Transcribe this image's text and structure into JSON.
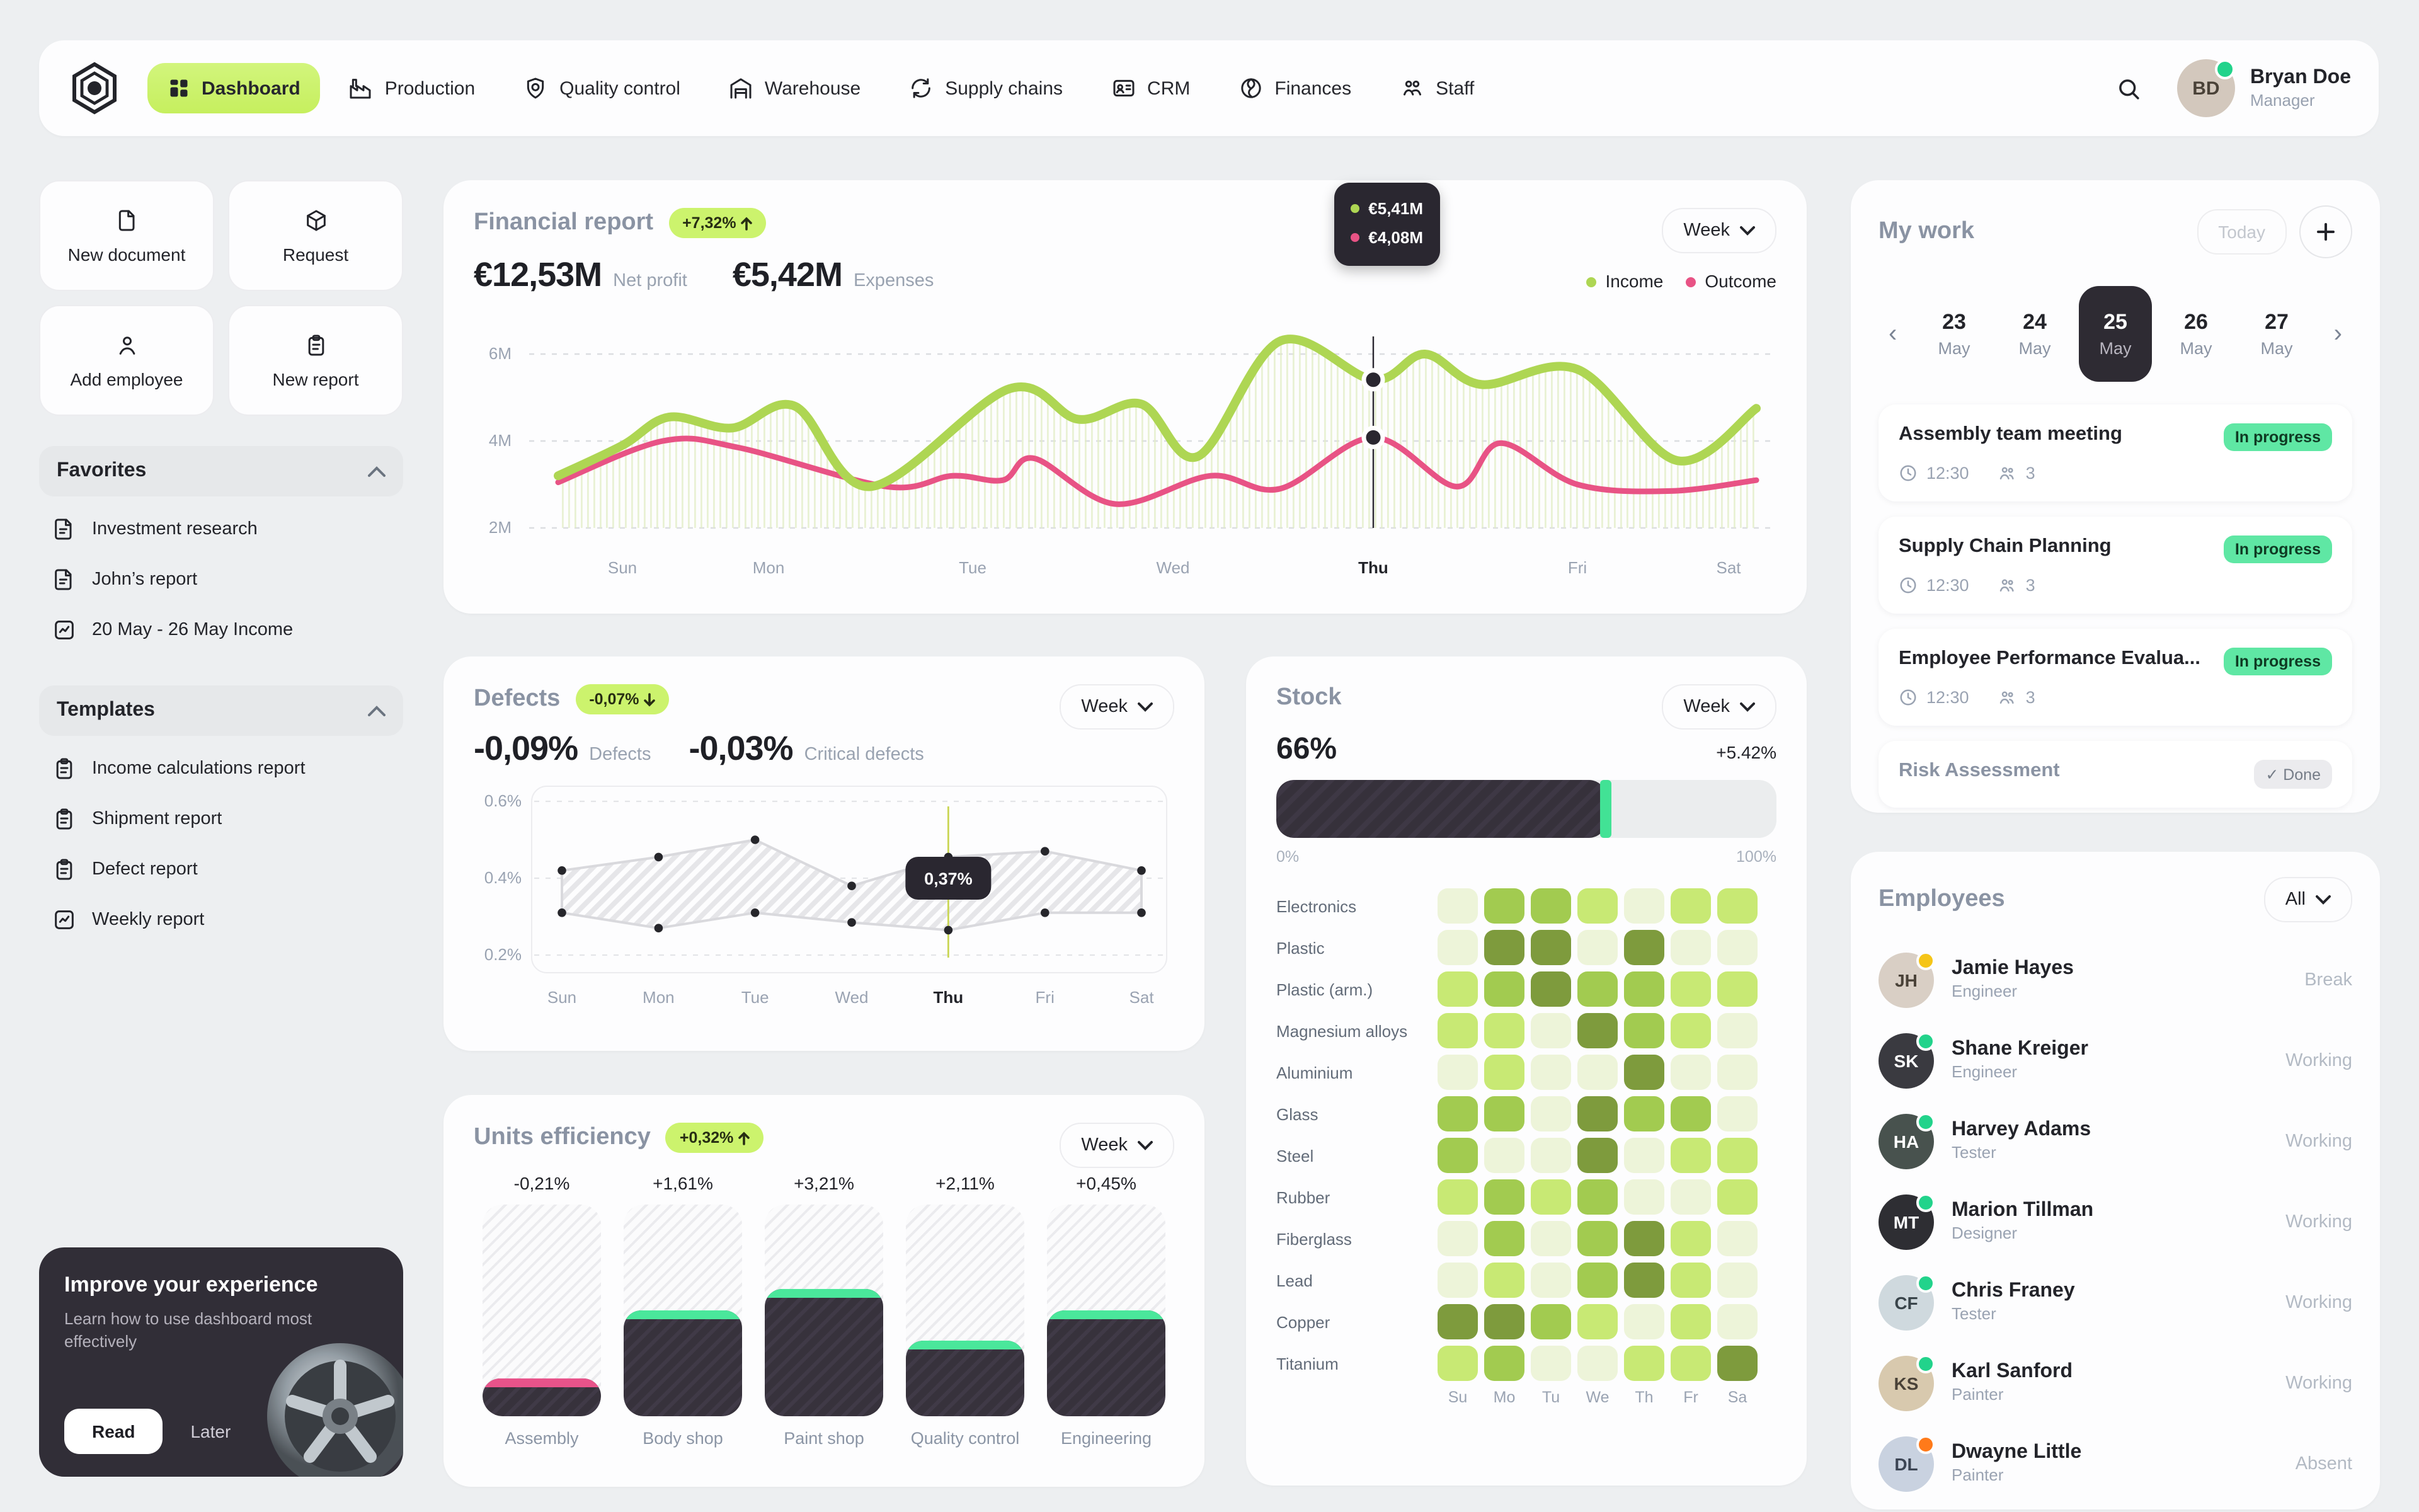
{
  "nav": {
    "items": [
      {
        "label": "Dashboard",
        "icon": "dashboard",
        "active": true
      },
      {
        "label": "Production",
        "icon": "production",
        "active": false
      },
      {
        "label": "Quality control",
        "icon": "quality",
        "active": false
      },
      {
        "label": "Warehouse",
        "icon": "warehouse",
        "active": false
      },
      {
        "label": "Supply chains",
        "icon": "supply",
        "active": false
      },
      {
        "label": "CRM",
        "icon": "crm",
        "active": false
      },
      {
        "label": "Finances",
        "icon": "finances",
        "active": false
      },
      {
        "label": "Staff",
        "icon": "staff",
        "active": false
      }
    ],
    "user": {
      "name": "Bryan Doe",
      "role": "Manager",
      "initials": "BD",
      "status_color": "#22d38b",
      "avatar_bg": "#d3c8bd"
    }
  },
  "sidebar": {
    "quick_actions": [
      {
        "label": "New document",
        "icon": "file"
      },
      {
        "label": "Request",
        "icon": "cube"
      },
      {
        "label": "Add employee",
        "icon": "person"
      },
      {
        "label": "New report",
        "icon": "clipboard"
      }
    ],
    "favorites": {
      "title": "Favorites",
      "items": [
        {
          "label": "Investment research",
          "icon": "doc"
        },
        {
          "label": "John’s report",
          "icon": "doc"
        },
        {
          "label": "20 May - 26 May Income",
          "icon": "chartdoc"
        }
      ]
    },
    "templates": {
      "title": "Templates",
      "items": [
        {
          "label": "Income calculations report",
          "icon": "clipboard"
        },
        {
          "label": "Shipment report",
          "icon": "clipboard"
        },
        {
          "label": "Defect report",
          "icon": "clipboard"
        },
        {
          "label": "Weekly report",
          "icon": "chartdoc"
        }
      ]
    },
    "promo": {
      "title": "Improve your experience",
      "subtitle": "Learn how to use dashboard most effectively",
      "read_label": "Read",
      "later_label": "Later"
    }
  },
  "financial": {
    "title": "Financial report",
    "badge": "+7,32%",
    "period": "Week",
    "net_profit": {
      "value": "€12,53M",
      "label": "Net profit"
    },
    "expenses": {
      "value": "€5,42M",
      "label": "Expenses"
    },
    "legend": [
      {
        "label": "Income",
        "color": "#aed653"
      },
      {
        "label": "Outcome",
        "color": "#e85385"
      }
    ],
    "tooltip": {
      "income": "€5,41M",
      "outcome": "€4,08M"
    }
  },
  "defects": {
    "title": "Defects",
    "badge": "-0,07%",
    "period": "Week",
    "stats": [
      {
        "value": "-0,09%",
        "label": "Defects"
      },
      {
        "value": "-0,03%",
        "label": "Critical defects"
      }
    ],
    "tooltip": "0,37%"
  },
  "stock": {
    "title": "Stock",
    "period": "Week",
    "progress": {
      "value": "66%",
      "delta": "+5.42%",
      "pct": 66,
      "min": "0%",
      "max": "100%",
      "cap_color": "#42e295"
    }
  },
  "units": {
    "title": "Units efficiency",
    "badge": "+0,32%",
    "period": "Week"
  },
  "my_work": {
    "title": "My work",
    "today_label": "Today",
    "days": [
      {
        "num": "23",
        "month": "May",
        "selected": false
      },
      {
        "num": "24",
        "month": "May",
        "selected": false
      },
      {
        "num": "25",
        "month": "May",
        "selected": true
      },
      {
        "num": "26",
        "month": "May",
        "selected": false
      },
      {
        "num": "27",
        "month": "May",
        "selected": false
      }
    ],
    "tasks": [
      {
        "title": "Assembly team meeting",
        "time": "12:30",
        "people": "3",
        "status": "In progress",
        "done": false
      },
      {
        "title": "Supply Chain Planning",
        "time": "12:30",
        "people": "3",
        "status": "In progress",
        "done": false
      },
      {
        "title": "Employee Performance Evalua...",
        "time": "12:30",
        "people": "3",
        "status": "In progress",
        "done": false
      },
      {
        "title": "Risk Assessment",
        "time": "",
        "people": "",
        "status": "Done",
        "done": true
      }
    ]
  },
  "employees": {
    "title": "Employees",
    "filter": "All",
    "list": [
      {
        "name": "Jamie Hayes",
        "role": "Engineer",
        "status": "Break",
        "dot": "#f5c518",
        "initials": "JH",
        "bg": "#d9cfc5",
        "fg": "#4a4238"
      },
      {
        "name": "Shane Kreiger",
        "role": "Engineer",
        "status": "Working",
        "dot": "#22d38b",
        "initials": "SK",
        "bg": "#3a3a40",
        "fg": "#ffffff"
      },
      {
        "name": "Harvey Adams",
        "role": "Tester",
        "status": "Working",
        "dot": "#22d38b",
        "initials": "HA",
        "bg": "#48524e",
        "fg": "#ffffff"
      },
      {
        "name": "Marion Tillman",
        "role": "Designer",
        "status": "Working",
        "dot": "#22d38b",
        "initials": "MT",
        "bg": "#2e2e33",
        "fg": "#ffffff"
      },
      {
        "name": "Chris Franey",
        "role": "Tester",
        "status": "Working",
        "dot": "#22d38b",
        "initials": "CF",
        "bg": "#cfd9de",
        "fg": "#39444a"
      },
      {
        "name": "Karl Sanford",
        "role": "Painter",
        "status": "Working",
        "dot": "#22d38b",
        "initials": "KS",
        "bg": "#d8c9ae",
        "fg": "#4a4238"
      },
      {
        "name": "Dwayne Little",
        "role": "Painter",
        "status": "Absent",
        "dot": "#ff7a1a",
        "initials": "DL",
        "bg": "#c9d2e0",
        "fg": "#3c4554"
      }
    ]
  },
  "chart_data": [
    {
      "id": "financial",
      "type": "area",
      "title": "Financial report",
      "x_labels": [
        "Sun",
        "Mon",
        "Tue",
        "Wed",
        "Thu",
        "Fri",
        "Sat"
      ],
      "x_label_pos": [
        118,
        234,
        396,
        555,
        714,
        876,
        996
      ],
      "y_ticks": [
        {
          "label": "6M",
          "value": 6
        },
        {
          "label": "4M",
          "value": 4
        },
        {
          "label": "2M",
          "value": 2
        }
      ],
      "y_range": [
        2,
        6
      ],
      "series": [
        {
          "name": "Income",
          "color": "#aed653",
          "points": [
            [
              67,
              3.2
            ],
            [
              118,
              3.9
            ],
            [
              155,
              4.55
            ],
            [
              205,
              4.3
            ],
            [
              255,
              4.8
            ],
            [
              315,
              2.95
            ],
            [
              425,
              5.2
            ],
            [
              480,
              4.5
            ],
            [
              530,
              4.85
            ],
            [
              575,
              3.65
            ],
            [
              640,
              6.3
            ],
            [
              714,
              5.41
            ],
            [
              755,
              6.0
            ],
            [
              800,
              5.3
            ],
            [
              876,
              5.65
            ],
            [
              955,
              3.55
            ],
            [
              1018,
              4.75
            ]
          ]
        },
        {
          "name": "Outcome",
          "color": "#e85385",
          "points": [
            [
              67,
              3.05
            ],
            [
              150,
              4.0
            ],
            [
              210,
              3.85
            ],
            [
              328,
              2.95
            ],
            [
              380,
              3.2
            ],
            [
              420,
              3.1
            ],
            [
              445,
              3.6
            ],
            [
              509,
              2.55
            ],
            [
              585,
              3.2
            ],
            [
              640,
              2.9
            ],
            [
              714,
              4.08
            ],
            [
              780,
              2.95
            ],
            [
              815,
              3.95
            ],
            [
              876,
              3.0
            ],
            [
              950,
              2.85
            ],
            [
              1018,
              3.1
            ]
          ]
        }
      ],
      "tooltip": {
        "day": "Thu",
        "x": 714,
        "income_value": 5.41,
        "outcome_value": 4.08,
        "income_label": "€5,41M",
        "outcome_label": "€4,08M"
      },
      "legend_position": "top-right",
      "grid": "dashed-horizontal"
    },
    {
      "id": "defects",
      "type": "range-band",
      "title": "Defects",
      "x_labels": [
        "Sun",
        "Mon",
        "Tue",
        "Wed",
        "Thu",
        "Fri",
        "Sat"
      ],
      "y_ticks": [
        {
          "label": "0.6%",
          "value": 0.6
        },
        {
          "label": "0.4%",
          "value": 0.4
        },
        {
          "label": "0.2%",
          "value": 0.2
        }
      ],
      "upper": [
        0.42,
        0.455,
        0.5,
        0.38,
        0.455,
        0.47,
        0.42
      ],
      "lower": [
        0.31,
        0.27,
        0.31,
        0.285,
        0.265,
        0.31,
        0.31
      ],
      "tooltip": {
        "day_index": 4,
        "label": "0,37%"
      }
    },
    {
      "id": "stock-heatmap",
      "type": "heatmap",
      "title": "Stock",
      "cols": [
        "Su",
        "Mo",
        "Tu",
        "We",
        "Th",
        "Fr",
        "Sa"
      ],
      "palette": [
        "",
        "#edf4d9",
        "#c8e974",
        "#a2cb50",
        "#7e9b3d"
      ],
      "rows": [
        {
          "label": "Electronics",
          "levels": [
            1,
            3,
            3,
            2,
            1,
            2,
            2
          ]
        },
        {
          "label": "Plastic",
          "levels": [
            1,
            4,
            4,
            1,
            4,
            1,
            1
          ]
        },
        {
          "label": "Plastic (arm.)",
          "levels": [
            2,
            3,
            4,
            3,
            3,
            2,
            2
          ]
        },
        {
          "label": "Magnesium alloys",
          "levels": [
            2,
            2,
            1,
            4,
            3,
            2,
            1
          ]
        },
        {
          "label": "Aluminium",
          "levels": [
            1,
            2,
            1,
            1,
            4,
            1,
            1
          ]
        },
        {
          "label": "Glass",
          "levels": [
            3,
            3,
            1,
            4,
            3,
            3,
            1
          ]
        },
        {
          "label": "Steel",
          "levels": [
            3,
            1,
            1,
            4,
            1,
            2,
            2
          ]
        },
        {
          "label": "Rubber",
          "levels": [
            2,
            3,
            2,
            3,
            1,
            1,
            2
          ]
        },
        {
          "label": "Fiberglass",
          "levels": [
            1,
            3,
            1,
            3,
            4,
            2,
            1
          ]
        },
        {
          "label": "Lead",
          "levels": [
            1,
            2,
            1,
            3,
            4,
            2,
            1
          ]
        },
        {
          "label": "Copper",
          "levels": [
            4,
            4,
            3,
            2,
            1,
            2,
            1
          ]
        },
        {
          "label": "Titanium",
          "levels": [
            2,
            3,
            1,
            1,
            2,
            2,
            4
          ]
        }
      ]
    },
    {
      "id": "units",
      "type": "bar",
      "title": "Units efficiency",
      "categories": [
        "Assembly",
        "Body shop",
        "Paint shop",
        "Quality control",
        "Engineering"
      ],
      "deltas": [
        "-0,21%",
        "+1,61%",
        "+3,21%",
        "+2,11%",
        "+0,45%"
      ],
      "fill_pct": [
        18,
        50,
        60,
        36,
        50
      ],
      "cap_colors": [
        "#e8538a",
        "#4ae79b",
        "#4ae79b",
        "#4ae79b",
        "#4ae79b"
      ]
    }
  ]
}
